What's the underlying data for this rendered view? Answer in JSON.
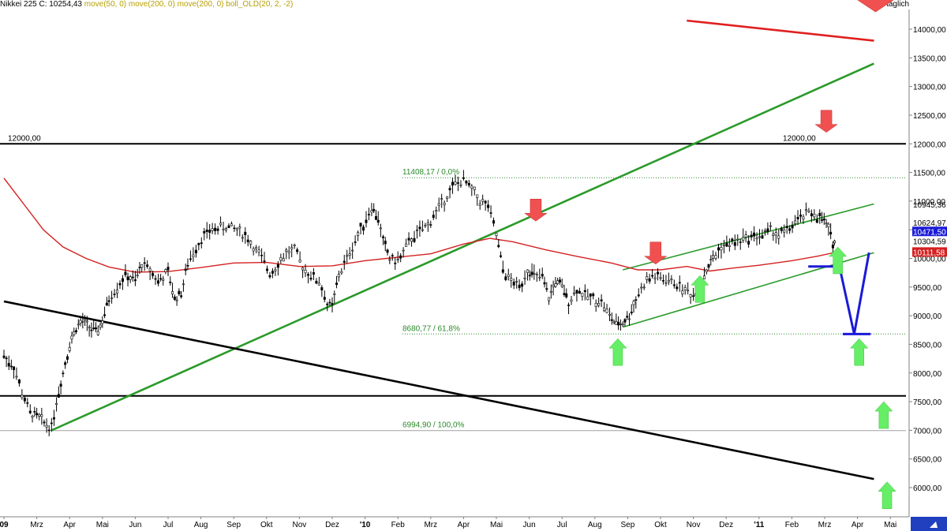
{
  "header": {
    "name": "Nikkei 225 C: 10254,43",
    "indicators": "move(50, 0) move(200, 0) move(200, 0) boll_OLD(20, 2, -2)",
    "frequency": "täglich"
  },
  "colors": {
    "trend_green": "#2a9a2a",
    "resistance_red": "#e02020",
    "ma_red": "#d42020",
    "black": "#000000",
    "forecast_blue": "#1a1ad8",
    "arrow_green": "#66ee66",
    "arrow_red": "#f05050",
    "fib_green": "#2a8a2a"
  },
  "chart_data": {
    "type": "line",
    "title": "Nikkei 225 C: 10254,43",
    "ylim": [
      5500,
      14400
    ],
    "y_ticks": [
      "6000,00",
      "6500,00",
      "7000,00",
      "7500,00",
      "8000,00",
      "8500,00",
      "9000,00",
      "9500,00",
      "10000,00",
      "10500,00",
      "11000,00",
      "11500,00",
      "12000,00",
      "12500,00",
      "13000,00",
      "13500,00",
      "14000,00"
    ],
    "y_tick_values": [
      6000,
      6500,
      7000,
      7500,
      8000,
      8500,
      9000,
      9500,
      10000,
      10500,
      11000,
      11500,
      12000,
      12500,
      13000,
      13500,
      14000
    ],
    "x_ticks": [
      {
        "label": "09",
        "t": 0
      },
      {
        "label": "Mrz",
        "t": 1
      },
      {
        "label": "Apr",
        "t": 2
      },
      {
        "label": "Mai",
        "t": 3
      },
      {
        "label": "Jun",
        "t": 4
      },
      {
        "label": "Jul",
        "t": 5
      },
      {
        "label": "Aug",
        "t": 6
      },
      {
        "label": "Sep",
        "t": 7
      },
      {
        "label": "Okt",
        "t": 8
      },
      {
        "label": "Nov",
        "t": 9
      },
      {
        "label": "Dez",
        "t": 10
      },
      {
        "label": "'10",
        "t": 11
      },
      {
        "label": "Feb",
        "t": 12
      },
      {
        "label": "Mrz",
        "t": 13
      },
      {
        "label": "Apr",
        "t": 14
      },
      {
        "label": "Mai",
        "t": 15
      },
      {
        "label": "Jun",
        "t": 16
      },
      {
        "label": "Jul",
        "t": 17
      },
      {
        "label": "Aug",
        "t": 18
      },
      {
        "label": "Sep",
        "t": 19
      },
      {
        "label": "Okt",
        "t": 20
      },
      {
        "label": "Nov",
        "t": 21
      },
      {
        "label": "Dez",
        "t": 22
      },
      {
        "label": "'11",
        "t": 23
      },
      {
        "label": "Feb",
        "t": 24
      },
      {
        "label": "Mrz",
        "t": 25
      },
      {
        "label": "Apr",
        "t": 26
      },
      {
        "label": "Mai",
        "t": 27
      }
    ],
    "price_series": {
      "name": "Nikkei 225",
      "points": [
        [
          0.0,
          8300
        ],
        [
          0.3,
          8100
        ],
        [
          0.55,
          7650
        ],
        [
          0.8,
          7300
        ],
        [
          1.0,
          7250
        ],
        [
          1.3,
          7100
        ],
        [
          1.45,
          7050
        ],
        [
          1.6,
          7500
        ],
        [
          1.8,
          8000
        ],
        [
          2.0,
          8500
        ],
        [
          2.2,
          8800
        ],
        [
          2.4,
          8900
        ],
        [
          2.6,
          8800
        ],
        [
          2.8,
          8700
        ],
        [
          3.0,
          8900
        ],
        [
          3.2,
          9300
        ],
        [
          3.45,
          9500
        ],
        [
          3.7,
          9700
        ],
        [
          4.0,
          9600
        ],
        [
          4.2,
          9900
        ],
        [
          4.45,
          9800
        ],
        [
          4.7,
          9600
        ],
        [
          5.0,
          9750
        ],
        [
          5.2,
          9300
        ],
        [
          5.4,
          9400
        ],
        [
          5.6,
          9900
        ],
        [
          5.85,
          10200
        ],
        [
          6.1,
          10400
        ],
        [
          6.35,
          10500
        ],
        [
          6.6,
          10550
        ],
        [
          6.85,
          10550
        ],
        [
          7.1,
          10500
        ],
        [
          7.35,
          10400
        ],
        [
          7.6,
          10200
        ],
        [
          7.85,
          10000
        ],
        [
          8.1,
          9750
        ],
        [
          8.35,
          9900
        ],
        [
          8.6,
          10100
        ],
        [
          8.85,
          10150
        ],
        [
          9.1,
          9850
        ],
        [
          9.35,
          9700
        ],
        [
          9.6,
          9600
        ],
        [
          9.85,
          9200
        ],
        [
          10.0,
          9150
        ],
        [
          10.2,
          9700
        ],
        [
          10.45,
          10000
        ],
        [
          10.7,
          10300
        ],
        [
          10.95,
          10600
        ],
        [
          11.2,
          10900
        ],
        [
          11.4,
          10700
        ],
        [
          11.55,
          10300
        ],
        [
          11.75,
          10000
        ],
        [
          12.0,
          9950
        ],
        [
          12.25,
          10200
        ],
        [
          12.5,
          10400
        ],
        [
          12.75,
          10500
        ],
        [
          13.0,
          10650
        ],
        [
          13.25,
          10900
        ],
        [
          13.5,
          11100
        ],
        [
          13.75,
          11300
        ],
        [
          14.0,
          11350
        ],
        [
          14.25,
          11200
        ],
        [
          14.5,
          11000
        ],
        [
          14.75,
          10900
        ],
        [
          15.0,
          10400
        ],
        [
          15.2,
          9800
        ],
        [
          15.45,
          9600
        ],
        [
          15.7,
          9500
        ],
        [
          15.95,
          9800
        ],
        [
          16.15,
          9700
        ],
        [
          16.4,
          9650
        ],
        [
          16.6,
          9300
        ],
        [
          16.8,
          9600
        ],
        [
          17.0,
          9500
        ],
        [
          17.2,
          9250
        ],
        [
          17.45,
          9450
        ],
        [
          17.7,
          9350
        ],
        [
          17.95,
          9300
        ],
        [
          18.2,
          9250
        ],
        [
          18.45,
          9000
        ],
        [
          18.65,
          8850
        ],
        [
          18.85,
          8880
        ],
        [
          19.05,
          9000
        ],
        [
          19.25,
          9300
        ],
        [
          19.5,
          9550
        ],
        [
          19.75,
          9700
        ],
        [
          20.0,
          9650
        ],
        [
          20.25,
          9600
        ],
        [
          20.5,
          9550
        ],
        [
          20.75,
          9450
        ],
        [
          21.0,
          9350
        ],
        [
          21.2,
          9550
        ],
        [
          21.4,
          9800
        ],
        [
          21.6,
          10000
        ],
        [
          21.85,
          10200
        ],
        [
          22.1,
          10250
        ],
        [
          22.35,
          10300
        ],
        [
          22.6,
          10350
        ],
        [
          22.85,
          10400
        ],
        [
          23.1,
          10400
        ],
        [
          23.35,
          10500
        ],
        [
          23.6,
          10400
        ],
        [
          23.85,
          10500
        ],
        [
          24.1,
          10600
        ],
        [
          24.35,
          10750
        ],
        [
          24.6,
          10800
        ],
        [
          24.85,
          10700
        ],
        [
          25.05,
          10600
        ],
        [
          25.25,
          10300
        ],
        [
          25.35,
          10250
        ]
      ]
    },
    "ma_series": {
      "name": "move(200, 0)",
      "points": [
        [
          0.0,
          11400
        ],
        [
          0.6,
          10950
        ],
        [
          1.2,
          10500
        ],
        [
          1.8,
          10200
        ],
        [
          2.5,
          10000
        ],
        [
          3.2,
          9850
        ],
        [
          4.0,
          9760
        ],
        [
          5.0,
          9770
        ],
        [
          6.0,
          9840
        ],
        [
          7.0,
          9920
        ],
        [
          8.0,
          9930
        ],
        [
          9.0,
          9860
        ],
        [
          10.0,
          9870
        ],
        [
          11.0,
          9960
        ],
        [
          12.0,
          10020
        ],
        [
          13.0,
          10080
        ],
        [
          14.0,
          10250
        ],
        [
          14.8,
          10350
        ],
        [
          15.5,
          10290
        ],
        [
          16.5,
          10150
        ],
        [
          17.5,
          10030
        ],
        [
          18.5,
          9920
        ],
        [
          19.3,
          9800
        ],
        [
          20.0,
          9800
        ],
        [
          20.8,
          9860
        ],
        [
          21.5,
          9780
        ],
        [
          22.2,
          9830
        ],
        [
          23.0,
          9880
        ],
        [
          24.0,
          9960
        ],
        [
          24.8,
          10040
        ],
        [
          25.35,
          10110
        ]
      ]
    },
    "trend_lines": [
      {
        "name": "long-term-uptrend",
        "color": "green",
        "points": [
          [
            1.45,
            7000
          ],
          [
            26.5,
            13400
          ]
        ]
      },
      {
        "name": "channel-lower",
        "color": "green",
        "points": [
          [
            18.85,
            8800
          ],
          [
            26.5,
            10100
          ]
        ]
      },
      {
        "name": "channel-upper",
        "color": "green",
        "points": [
          [
            18.85,
            9800
          ],
          [
            26.5,
            10950
          ]
        ]
      },
      {
        "name": "long-term-downtrend",
        "color": "black",
        "points": [
          [
            0.0,
            9250
          ],
          [
            26.5,
            6150
          ]
        ]
      },
      {
        "name": "top-downtrend",
        "color": "red",
        "points": [
          [
            20.8,
            14150
          ],
          [
            26.5,
            13800
          ]
        ]
      }
    ],
    "horizontal_lines": [
      {
        "value": 12000,
        "color": "black",
        "label": "12000,00"
      },
      {
        "value": 7600,
        "color": "black",
        "label": ""
      },
      {
        "value": 11408.17,
        "color": "green-dotted",
        "label": "11408,17 / 0,0%"
      },
      {
        "value": 8680.77,
        "color": "green-dotted",
        "label": "8680,77 / 61,8%"
      },
      {
        "value": 6994.9,
        "color": "gray",
        "label": "6994,90 / 100,0%"
      }
    ],
    "forecast_path": {
      "color": "blue",
      "points": [
        [
          24.5,
          9860
        ],
        [
          25.45,
          9860
        ],
        [
          25.9,
          8680
        ],
        [
          26.35,
          10100
        ]
      ],
      "target_value": 8680
    },
    "price_labels": [
      {
        "text": "10945,36",
        "value": 10945.36,
        "style": "plain"
      },
      {
        "text": "10624,97",
        "value": 10624.97,
        "style": "plain"
      },
      {
        "text": "10471,50",
        "value": 10471.5,
        "style": "blue"
      },
      {
        "text": "10304,59",
        "value": 10304.59,
        "style": "plain"
      },
      {
        "text": "10111,58",
        "value": 10111.58,
        "style": "red"
      }
    ],
    "arrows": [
      {
        "kind": "down",
        "color": "red",
        "t": 16.2,
        "value": 10650
      },
      {
        "kind": "down",
        "color": "red",
        "t": 19.85,
        "value": 9900
      },
      {
        "kind": "down",
        "color": "red",
        "t": 25.05,
        "value": 12200
      },
      {
        "kind": "down",
        "color": "red-large",
        "t": 26.55,
        "value": 14300
      },
      {
        "kind": "up",
        "color": "green",
        "t": 18.7,
        "value": 8600
      },
      {
        "kind": "up",
        "color": "green",
        "t": 21.2,
        "value": 9700
      },
      {
        "kind": "up",
        "color": "green",
        "t": 25.4,
        "value": 10200
      },
      {
        "kind": "up",
        "color": "green",
        "t": 26.05,
        "value": 8600
      },
      {
        "kind": "up",
        "color": "green",
        "t": 26.8,
        "value": 7500
      },
      {
        "kind": "up",
        "color": "green",
        "t": 26.9,
        "value": 6100
      }
    ]
  }
}
